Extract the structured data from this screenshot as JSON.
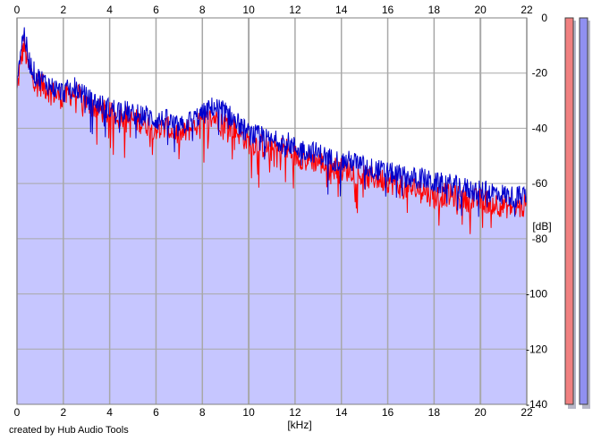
{
  "footer": {
    "credit": "created by Hub Audio Tools"
  },
  "colors": {
    "plot_background": "#c6c6ff",
    "grid": "#a8a8a8",
    "series_left": "#ff0000",
    "series_right": "#0000cc",
    "meter_left": "#f08080",
    "meter_right": "#9090f0",
    "meter_shadow": "#b8b8c8"
  },
  "meters": [
    {
      "name": "left-level-meter",
      "color_key": "meter_left"
    },
    {
      "name": "right-level-meter",
      "color_key": "meter_right"
    }
  ],
  "chart_data": {
    "type": "line",
    "xlabel": "[kHz]",
    "ylabel": "[dB]",
    "xlim": [
      0,
      22
    ],
    "ylim": [
      -140,
      0
    ],
    "x_ticks": [
      "0",
      "2",
      "4",
      "6",
      "8",
      "10",
      "12",
      "14",
      "16",
      "18",
      "20",
      "22"
    ],
    "y_ticks": [
      "0",
      "-20",
      "-40",
      "-60",
      "-80",
      "-100",
      "-120",
      "-140"
    ],
    "grid": true,
    "series": [
      {
        "color": "#ff0000",
        "x": [
          0,
          0.15,
          0.3,
          0.5,
          0.8,
          1.0,
          1.5,
          2.0,
          2.5,
          3.0,
          3.5,
          4.0,
          4.5,
          5.0,
          5.5,
          6.0,
          6.5,
          7.0,
          7.5,
          8.0,
          8.5,
          9.0,
          9.5,
          10.0,
          10.5,
          11.0,
          11.5,
          12.0,
          12.5,
          13.0,
          13.5,
          14.0,
          14.5,
          15.0,
          15.5,
          16.0,
          16.5,
          17.0,
          17.5,
          18.0,
          18.5,
          19.0,
          19.5,
          20.0,
          20.5,
          21.0,
          21.5,
          22.0
        ],
        "y": [
          -27,
          -16,
          -10,
          -18,
          -23,
          -24,
          -27,
          -29,
          -27,
          -31,
          -33,
          -35,
          -35,
          -37,
          -38,
          -40,
          -40,
          -43,
          -40,
          -38,
          -36,
          -38,
          -41,
          -45,
          -46,
          -48,
          -47,
          -50,
          -51,
          -52,
          -54,
          -55,
          -55,
          -58,
          -58,
          -59,
          -61,
          -62,
          -62,
          -65,
          -64,
          -65,
          -66,
          -66,
          -67,
          -68,
          -69,
          -68
        ]
      },
      {
        "color": "#0000cc",
        "x": [
          0,
          0.15,
          0.3,
          0.5,
          0.8,
          1.0,
          1.5,
          2.0,
          2.5,
          3.0,
          3.5,
          4.0,
          4.5,
          5.0,
          5.5,
          6.0,
          6.5,
          7.0,
          7.5,
          8.0,
          8.5,
          9.0,
          9.5,
          10.0,
          10.5,
          11.0,
          11.5,
          12.0,
          12.5,
          13.0,
          13.5,
          14.0,
          14.5,
          15.0,
          15.5,
          16.0,
          16.5,
          17.0,
          17.5,
          18.0,
          18.5,
          19.0,
          19.5,
          20.0,
          20.5,
          21.0,
          21.5,
          22.0
        ],
        "y": [
          -22,
          -12,
          -5,
          -15,
          -21,
          -22,
          -25,
          -27,
          -25,
          -29,
          -31,
          -33,
          -33,
          -35,
          -35,
          -37,
          -37,
          -40,
          -37,
          -35,
          -32,
          -34,
          -38,
          -42,
          -43,
          -45,
          -44,
          -47,
          -48,
          -49,
          -51,
          -52,
          -52,
          -54,
          -55,
          -56,
          -57,
          -58,
          -58,
          -60,
          -60,
          -61,
          -62,
          -63,
          -63,
          -64,
          -65,
          -64
        ]
      }
    ]
  }
}
